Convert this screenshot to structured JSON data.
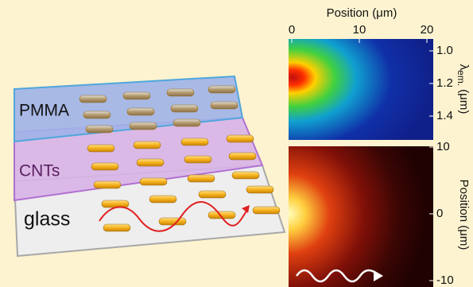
{
  "layers": [
    {
      "label": "PMMA"
    },
    {
      "label": "CNTs"
    },
    {
      "label": "glass"
    }
  ],
  "spectrum_panel": {
    "x_axis": {
      "label": "Position (μm)",
      "ticks": [
        "0",
        "10",
        "20"
      ]
    },
    "y_axis": {
      "symbol": "λ",
      "subscript": "em.",
      "unit": "(μm)",
      "ticks": [
        "1.0",
        "1.2",
        "1.4"
      ]
    }
  },
  "image_panel": {
    "y_axis": {
      "label": "Position (μm)",
      "ticks": [
        "10",
        "0",
        "-10"
      ]
    }
  }
}
